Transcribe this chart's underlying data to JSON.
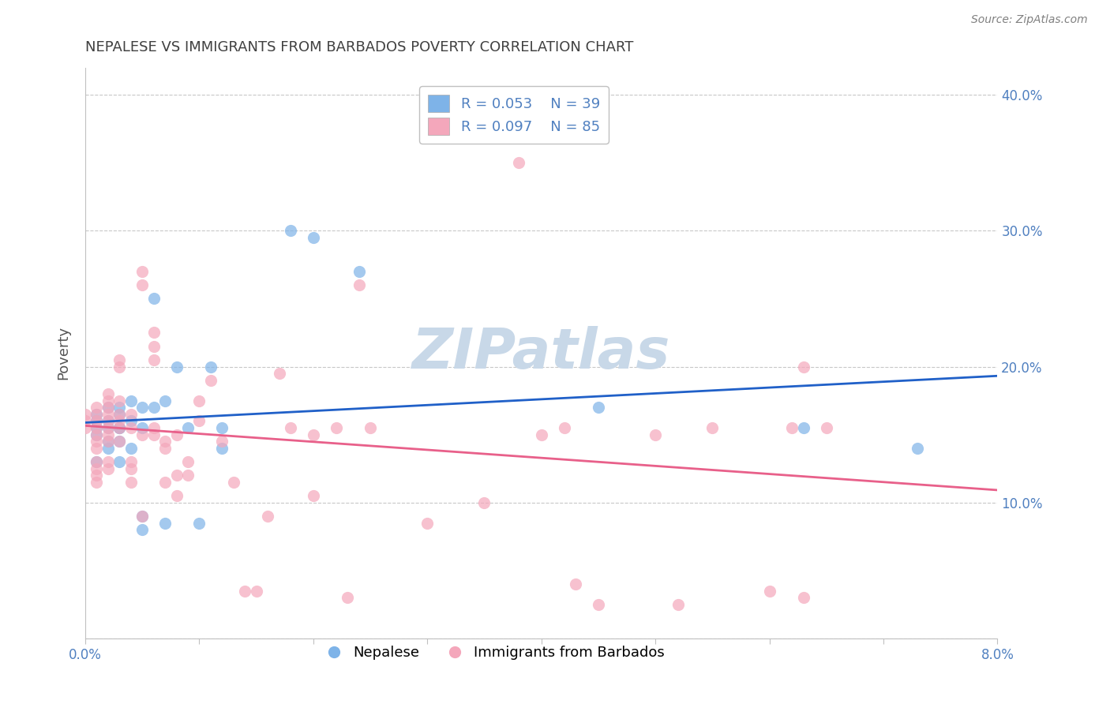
{
  "title": "NEPALESE VS IMMIGRANTS FROM BARBADOS POVERTY CORRELATION CHART",
  "source": "Source: ZipAtlas.com",
  "xlabel_bottom": "",
  "ylabel": "Poverty",
  "xlim": [
    0.0,
    0.08
  ],
  "ylim": [
    0.0,
    0.42
  ],
  "x_ticks": [
    0.0,
    0.01,
    0.02,
    0.03,
    0.04,
    0.05,
    0.06,
    0.07,
    0.08
  ],
  "x_tick_labels": [
    "0.0%",
    "",
    "",
    "",
    "",
    "",
    "",
    "",
    "8.0%"
  ],
  "y_ticks": [
    0.0,
    0.1,
    0.2,
    0.3,
    0.4
  ],
  "y_tick_labels": [
    "",
    "10.0%",
    "20.0%",
    "30.0%",
    "40.0%"
  ],
  "legend_R_blue": "R = 0.053",
  "legend_N_blue": "N = 39",
  "legend_R_pink": "R = 0.097",
  "legend_N_pink": "N = 85",
  "blue_color": "#7EB3E8",
  "pink_color": "#F4A7BB",
  "blue_line_color": "#2060C8",
  "pink_line_color": "#E8608A",
  "title_color": "#404040",
  "axis_label_color": "#5080C0",
  "watermark_color": "#C8D8E8",
  "blue_scatter_x": [
    0.001,
    0.001,
    0.001,
    0.001,
    0.001,
    0.002,
    0.002,
    0.002,
    0.002,
    0.002,
    0.003,
    0.003,
    0.003,
    0.003,
    0.003,
    0.003,
    0.004,
    0.004,
    0.004,
    0.005,
    0.005,
    0.005,
    0.005,
    0.006,
    0.006,
    0.007,
    0.007,
    0.008,
    0.009,
    0.01,
    0.011,
    0.012,
    0.012,
    0.018,
    0.02,
    0.024,
    0.045,
    0.063,
    0.073
  ],
  "blue_scatter_y": [
    0.15,
    0.155,
    0.16,
    0.165,
    0.13,
    0.145,
    0.16,
    0.17,
    0.155,
    0.14,
    0.145,
    0.155,
    0.165,
    0.13,
    0.155,
    0.17,
    0.14,
    0.16,
    0.175,
    0.09,
    0.155,
    0.17,
    0.08,
    0.25,
    0.17,
    0.175,
    0.085,
    0.2,
    0.155,
    0.085,
    0.2,
    0.14,
    0.155,
    0.3,
    0.295,
    0.27,
    0.17,
    0.155,
    0.14
  ],
  "pink_scatter_x": [
    0.0,
    0.0,
    0.0,
    0.001,
    0.001,
    0.001,
    0.001,
    0.001,
    0.001,
    0.001,
    0.001,
    0.001,
    0.001,
    0.001,
    0.002,
    0.002,
    0.002,
    0.002,
    0.002,
    0.002,
    0.002,
    0.002,
    0.002,
    0.002,
    0.003,
    0.003,
    0.003,
    0.003,
    0.003,
    0.003,
    0.003,
    0.004,
    0.004,
    0.004,
    0.004,
    0.004,
    0.005,
    0.005,
    0.005,
    0.005,
    0.006,
    0.006,
    0.006,
    0.006,
    0.006,
    0.007,
    0.007,
    0.007,
    0.008,
    0.008,
    0.008,
    0.009,
    0.009,
    0.01,
    0.01,
    0.011,
    0.012,
    0.013,
    0.014,
    0.015,
    0.016,
    0.017,
    0.018,
    0.02,
    0.02,
    0.022,
    0.023,
    0.024,
    0.025,
    0.03,
    0.033,
    0.035,
    0.038,
    0.04,
    0.042,
    0.043,
    0.045,
    0.05,
    0.052,
    0.055,
    0.06,
    0.062,
    0.063,
    0.063,
    0.065
  ],
  "pink_scatter_y": [
    0.155,
    0.16,
    0.165,
    0.15,
    0.155,
    0.16,
    0.165,
    0.14,
    0.13,
    0.125,
    0.12,
    0.115,
    0.145,
    0.17,
    0.155,
    0.16,
    0.15,
    0.145,
    0.13,
    0.125,
    0.165,
    0.17,
    0.175,
    0.18,
    0.145,
    0.155,
    0.16,
    0.165,
    0.2,
    0.205,
    0.175,
    0.155,
    0.165,
    0.115,
    0.125,
    0.13,
    0.09,
    0.26,
    0.27,
    0.15,
    0.15,
    0.155,
    0.205,
    0.215,
    0.225,
    0.14,
    0.145,
    0.115,
    0.12,
    0.105,
    0.15,
    0.13,
    0.12,
    0.175,
    0.16,
    0.19,
    0.145,
    0.115,
    0.035,
    0.035,
    0.09,
    0.195,
    0.155,
    0.15,
    0.105,
    0.155,
    0.03,
    0.26,
    0.155,
    0.085,
    0.37,
    0.1,
    0.35,
    0.15,
    0.155,
    0.04,
    0.025,
    0.15,
    0.025,
    0.155,
    0.035,
    0.155,
    0.03,
    0.2,
    0.155
  ]
}
